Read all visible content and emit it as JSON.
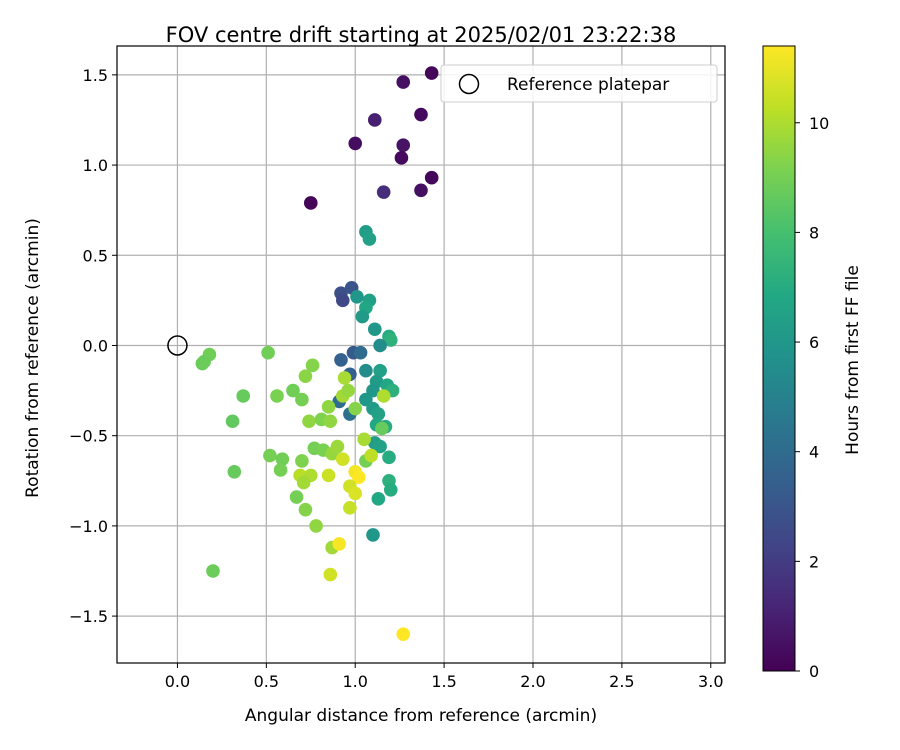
{
  "chart_data": {
    "type": "scatter",
    "title": "FOV centre drift starting at 2025/02/01 23:22:38",
    "xlabel": "Angular distance from reference (arcmin)",
    "ylabel": "Rotation from reference (arcmin)",
    "xlim": [
      -0.34,
      3.08
    ],
    "ylim": [
      -1.76,
      1.66
    ],
    "xticks": [
      0.0,
      0.5,
      1.0,
      1.5,
      2.0,
      2.5,
      3.0
    ],
    "xtick_labels": [
      "0.0",
      "0.5",
      "1.0",
      "1.5",
      "2.0",
      "2.5",
      "3.0"
    ],
    "yticks": [
      -1.5,
      -1.0,
      -0.5,
      0.0,
      0.5,
      1.0,
      1.5
    ],
    "ytick_labels": [
      "−1.5",
      "−1.0",
      "−0.5",
      "0.0",
      "0.5",
      "1.0",
      "1.5"
    ],
    "grid": true,
    "legend": {
      "position": "top-right",
      "entries": [
        "Reference platepar"
      ]
    },
    "reference_point": {
      "x": 0.0,
      "y": 0.0,
      "label": "Reference platepar"
    },
    "colorbar": {
      "label": "Hours from first FF file",
      "colormap": "viridis",
      "range": [
        0,
        11.4
      ],
      "ticks": [
        0,
        2,
        4,
        6,
        8,
        10
      ],
      "tick_labels": [
        "0",
        "2",
        "4",
        "6",
        "8",
        "10"
      ]
    },
    "series": [
      {
        "points": [
          [
            1.43,
            1.51,
            0.2
          ],
          [
            1.27,
            1.46,
            0.5
          ],
          [
            1.37,
            1.28,
            0.3
          ],
          [
            1.11,
            1.25,
            1.0
          ],
          [
            1.0,
            1.12,
            0.4
          ],
          [
            1.27,
            1.11,
            0.6
          ],
          [
            1.26,
            1.04,
            0.3
          ],
          [
            1.43,
            0.93,
            0.2
          ],
          [
            1.37,
            0.86,
            0.5
          ],
          [
            1.16,
            0.85,
            1.5
          ],
          [
            0.75,
            0.79,
            0.1
          ],
          [
            1.06,
            0.63,
            6.3
          ],
          [
            1.08,
            0.59,
            6.5
          ],
          [
            0.98,
            0.32,
            3.0
          ],
          [
            0.92,
            0.29,
            2.8
          ],
          [
            1.01,
            0.27,
            6.0
          ],
          [
            1.08,
            0.25,
            6.4
          ],
          [
            0.93,
            0.25,
            2.5
          ],
          [
            1.06,
            0.21,
            6.8
          ],
          [
            1.04,
            0.16,
            6.2
          ],
          [
            1.11,
            0.09,
            6.0
          ],
          [
            1.19,
            0.05,
            7.0
          ],
          [
            1.2,
            0.03,
            7.3
          ],
          [
            1.14,
            0.0,
            5.5
          ],
          [
            0.99,
            -0.04,
            3.2
          ],
          [
            1.03,
            -0.04,
            4.0
          ],
          [
            0.92,
            -0.08,
            3.5
          ],
          [
            1.06,
            -0.14,
            5.5
          ],
          [
            0.97,
            -0.16,
            3.5
          ],
          [
            1.14,
            -0.14,
            6.5
          ],
          [
            1.12,
            -0.2,
            6.2
          ],
          [
            1.18,
            -0.22,
            6.8
          ],
          [
            1.1,
            -0.25,
            6.0
          ],
          [
            1.21,
            -0.25,
            7.2
          ],
          [
            1.06,
            -0.3,
            6.0
          ],
          [
            1.1,
            -0.35,
            6.2
          ],
          [
            1.13,
            -0.38,
            6.5
          ],
          [
            1.17,
            -0.45,
            7.0
          ],
          [
            1.12,
            -0.44,
            6.8
          ],
          [
            1.11,
            -0.54,
            6.3
          ],
          [
            1.14,
            -0.56,
            6.5
          ],
          [
            1.19,
            -0.62,
            7.0
          ],
          [
            1.19,
            -0.75,
            7.2
          ],
          [
            1.2,
            -0.8,
            7.0
          ],
          [
            1.13,
            -0.85,
            6.8
          ],
          [
            1.1,
            -1.05,
            6.0
          ],
          [
            0.91,
            -0.31,
            4.0
          ],
          [
            0.97,
            -0.38,
            4.2
          ],
          [
            0.18,
            -0.05,
            8.9
          ],
          [
            0.15,
            -0.09,
            8.8
          ],
          [
            0.14,
            -0.1,
            8.8
          ],
          [
            0.51,
            -0.04,
            8.9
          ],
          [
            0.76,
            -0.11,
            9.3
          ],
          [
            0.72,
            -0.17,
            9.4
          ],
          [
            0.65,
            -0.25,
            8.9
          ],
          [
            0.37,
            -0.28,
            8.7
          ],
          [
            0.56,
            -0.28,
            9.1
          ],
          [
            0.7,
            -0.3,
            9.0
          ],
          [
            0.85,
            -0.34,
            9.5
          ],
          [
            0.93,
            -0.28,
            9.8
          ],
          [
            0.94,
            -0.18,
            9.9
          ],
          [
            0.96,
            -0.25,
            9.6
          ],
          [
            1.16,
            -0.28,
            10.0
          ],
          [
            0.31,
            -0.42,
            8.6
          ],
          [
            0.74,
            -0.42,
            9.5
          ],
          [
            0.81,
            -0.41,
            9.2
          ],
          [
            0.86,
            -0.42,
            9.5
          ],
          [
            1.0,
            -0.35,
            9.3
          ],
          [
            1.05,
            -0.52,
            9.9
          ],
          [
            1.15,
            -0.46,
            8.7
          ],
          [
            0.52,
            -0.61,
            9.0
          ],
          [
            0.59,
            -0.63,
            8.9
          ],
          [
            0.7,
            -0.64,
            9.2
          ],
          [
            0.77,
            -0.57,
            9.0
          ],
          [
            0.82,
            -0.58,
            9.1
          ],
          [
            0.87,
            -0.6,
            9.6
          ],
          [
            0.9,
            -0.56,
            9.7
          ],
          [
            0.93,
            -0.63,
            10.6
          ],
          [
            0.58,
            -0.69,
            9.0
          ],
          [
            0.32,
            -0.7,
            8.7
          ],
          [
            0.69,
            -0.72,
            10.2
          ],
          [
            0.75,
            -0.72,
            10.0
          ],
          [
            0.85,
            -0.72,
            10.5
          ],
          [
            0.71,
            -0.76,
            9.8
          ],
          [
            1.0,
            -0.7,
            11.2
          ],
          [
            1.02,
            -0.73,
            11.4
          ],
          [
            0.97,
            -0.78,
            10.6
          ],
          [
            1.06,
            -0.64,
            9.0
          ],
          [
            1.09,
            -0.61,
            10.3
          ],
          [
            1.0,
            -0.82,
            10.8
          ],
          [
            0.67,
            -0.84,
            9.0
          ],
          [
            0.72,
            -0.91,
            9.3
          ],
          [
            0.97,
            -0.9,
            10.4
          ],
          [
            0.78,
            -1.0,
            9.5
          ],
          [
            0.87,
            -1.12,
            9.8
          ],
          [
            0.91,
            -1.1,
            11.3
          ],
          [
            0.86,
            -1.27,
            10.6
          ],
          [
            0.2,
            -1.25,
            8.8
          ],
          [
            1.27,
            -1.6,
            11.4
          ]
        ]
      }
    ]
  }
}
